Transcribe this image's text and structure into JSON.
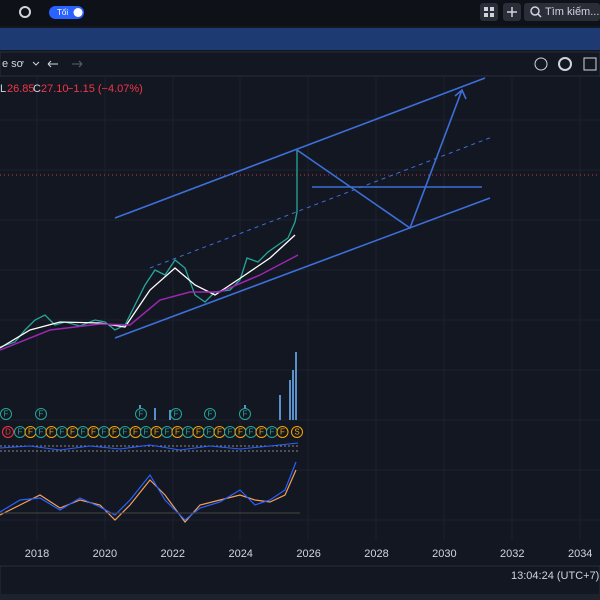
{
  "top_bar": {
    "theme_label": "Tối",
    "search_placeholder": "Tìm kiếm..."
  },
  "toolbar": {
    "chart_type": "e sơ"
  },
  "legend": {
    "low_label": "L",
    "low": "26.85",
    "close_label": "C",
    "close": "27.10",
    "change": "−1.15 (−4.07%)"
  },
  "time_axis": {
    "labels": [
      "2018",
      "2020",
      "2022",
      "2024",
      "2026",
      "2028",
      "2030",
      "2032",
      "2034"
    ]
  },
  "markers": {
    "dividend": "F",
    "split": "D",
    "earnings": "S"
  },
  "status": {
    "clock": "13:04:24 (UTC+7)"
  }
}
